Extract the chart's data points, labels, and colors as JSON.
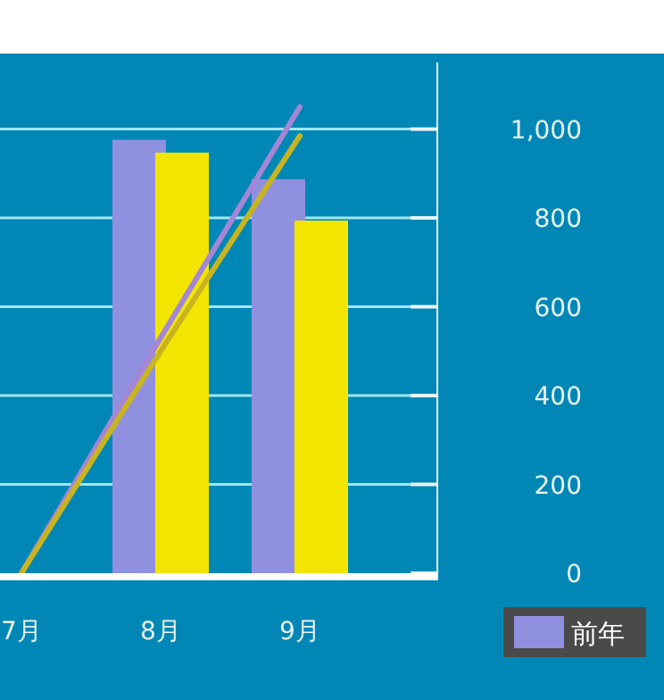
{
  "chart_data": {
    "type": "bar",
    "categories": [
      "7月",
      "8月",
      "9月"
    ],
    "series": [
      {
        "name": "前年",
        "color": "#9090e0",
        "values": [
          0,
          976,
          887
        ]
      },
      {
        "color": "#f2e600",
        "values": [
          0,
          947,
          794
        ]
      },
      {
        "type": "line",
        "color": "#a585d5",
        "values": [
          0,
          530,
          1050
        ]
      },
      {
        "type": "line",
        "color": "#c8b420",
        "values": [
          0,
          500,
          985
        ]
      }
    ],
    "ylim": [
      0,
      1150
    ],
    "yticks": [
      0,
      200,
      400,
      600,
      800,
      {
        "value": 1000,
        "label": "1,000"
      }
    ],
    "grid": "y",
    "legend": "bottom right"
  }
}
